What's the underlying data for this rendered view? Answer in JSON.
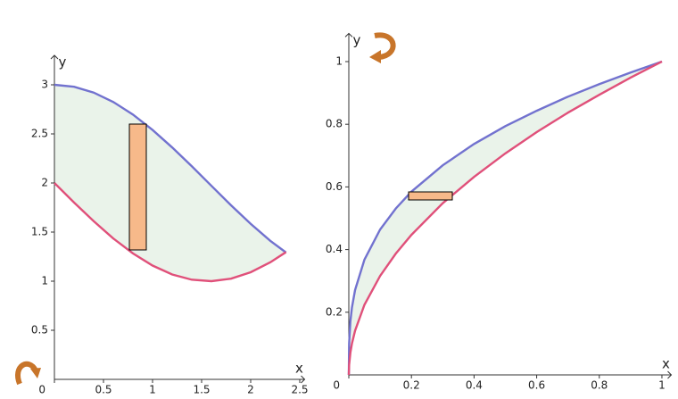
{
  "chart_data": [
    {
      "type": "line",
      "x_label": "x",
      "y_label": "y",
      "x": [
        0,
        0.2,
        0.4,
        0.6,
        0.8,
        1.0,
        1.2,
        1.4,
        1.6,
        1.8,
        2.0,
        2.2,
        2.36
      ],
      "series": [
        {
          "color": "#7272cf",
          "values": [
            3,
            2.98,
            2.921,
            2.825,
            2.697,
            2.54,
            2.362,
            2.17,
            1.971,
            1.773,
            1.584,
            1.411,
            1.292
          ]
        },
        {
          "color": "#e0507a",
          "values": [
            2,
            1.801,
            1.611,
            1.435,
            1.283,
            1.159,
            1.068,
            1.015,
            1.0,
            1.026,
            1.091,
            1.192,
            1.296
          ]
        }
      ],
      "xlim": [
        0,
        2.55
      ],
      "ylim": [
        0,
        3.3
      ],
      "xticks": [
        0,
        0.5,
        1,
        1.5,
        2,
        2.5
      ],
      "yticks": [
        0.5,
        1,
        1.5,
        2,
        2.5,
        3
      ]
    },
    {
      "type": "line",
      "x_label": "x",
      "y_label": "y",
      "x": [
        0,
        0.001,
        0.005,
        0.01,
        0.02,
        0.05,
        0.1,
        0.15,
        0.2,
        0.3,
        0.4,
        0.5,
        0.6,
        0.7,
        0.8,
        0.9,
        1
      ],
      "series": [
        {
          "color": "#7272cf",
          "values": [
            0,
            0.1,
            0.171,
            0.215,
            0.271,
            0.368,
            0.464,
            0.531,
            0.585,
            0.669,
            0.737,
            0.794,
            0.843,
            0.888,
            0.928,
            0.965,
            1
          ]
        },
        {
          "color": "#e0507a",
          "values": [
            0,
            0.032,
            0.071,
            0.1,
            0.141,
            0.224,
            0.316,
            0.387,
            0.447,
            0.548,
            0.632,
            0.707,
            0.775,
            0.837,
            0.894,
            0.949,
            1
          ]
        }
      ],
      "xlim": [
        0,
        1.03
      ],
      "ylim": [
        0,
        1.09
      ],
      "xticks": [
        0,
        0.2,
        0.4,
        0.6,
        0.8,
        1
      ],
      "yticks": [
        0.2,
        0.4,
        0.6,
        0.8,
        1
      ]
    }
  ]
}
